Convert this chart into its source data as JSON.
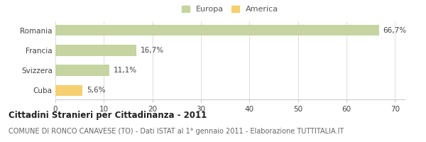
{
  "categories": [
    "Romania",
    "Francia",
    "Svizzera",
    "Cuba"
  ],
  "values": [
    66.7,
    16.7,
    11.1,
    5.6
  ],
  "labels": [
    "66,7%",
    "16,7%",
    "11,1%",
    "5,6%"
  ],
  "bar_colors": [
    "#c5d4a0",
    "#c5d4a0",
    "#c5d4a0",
    "#f5d070"
  ],
  "legend": [
    {
      "label": "Europa",
      "color": "#c5d4a0"
    },
    {
      "label": "America",
      "color": "#f5d070"
    }
  ],
  "xlim": [
    0,
    72
  ],
  "xticks": [
    0,
    10,
    20,
    30,
    40,
    50,
    60,
    70
  ],
  "title": "Cittadini Stranieri per Cittadinanza - 2011",
  "subtitle": "COMUNE DI RONCO CANAVESE (TO) - Dati ISTAT al 1° gennaio 2011 - Elaborazione TUTTITALIA.IT",
  "title_fontsize": 8.5,
  "subtitle_fontsize": 7,
  "label_fontsize": 7.5,
  "tick_fontsize": 7.5,
  "legend_fontsize": 8,
  "background_color": "#ffffff",
  "bar_height": 0.55
}
